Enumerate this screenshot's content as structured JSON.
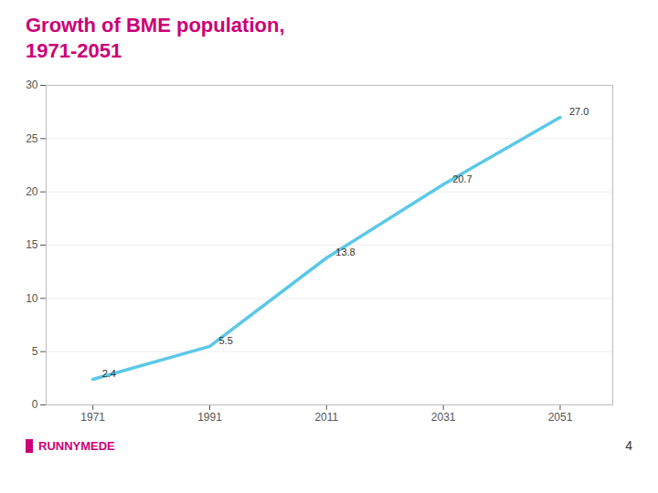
{
  "chart_data": {
    "type": "line",
    "title": "Growth of BME population,",
    "subtitle": "1971-2051",
    "x": [
      1971,
      1991,
      2011,
      2031,
      2051
    ],
    "values": [
      2.4,
      5.5,
      13.8,
      20.7,
      27.0
    ],
    "value_labels": [
      "2.4",
      "5.5",
      "13.8",
      "20.7",
      "27.0"
    ],
    "data_labels": true,
    "color": "#5bc8e8",
    "xlim": [
      1963,
      2060
    ],
    "xticks": [
      1971,
      1991,
      2011,
      2031,
      2051
    ],
    "ylim": [
      0,
      30
    ],
    "yticks": [
      0,
      5,
      10,
      15,
      20,
      25,
      30
    ],
    "grid": true,
    "annotations": [
      "RUNNYMEDE",
      "4"
    ]
  }
}
